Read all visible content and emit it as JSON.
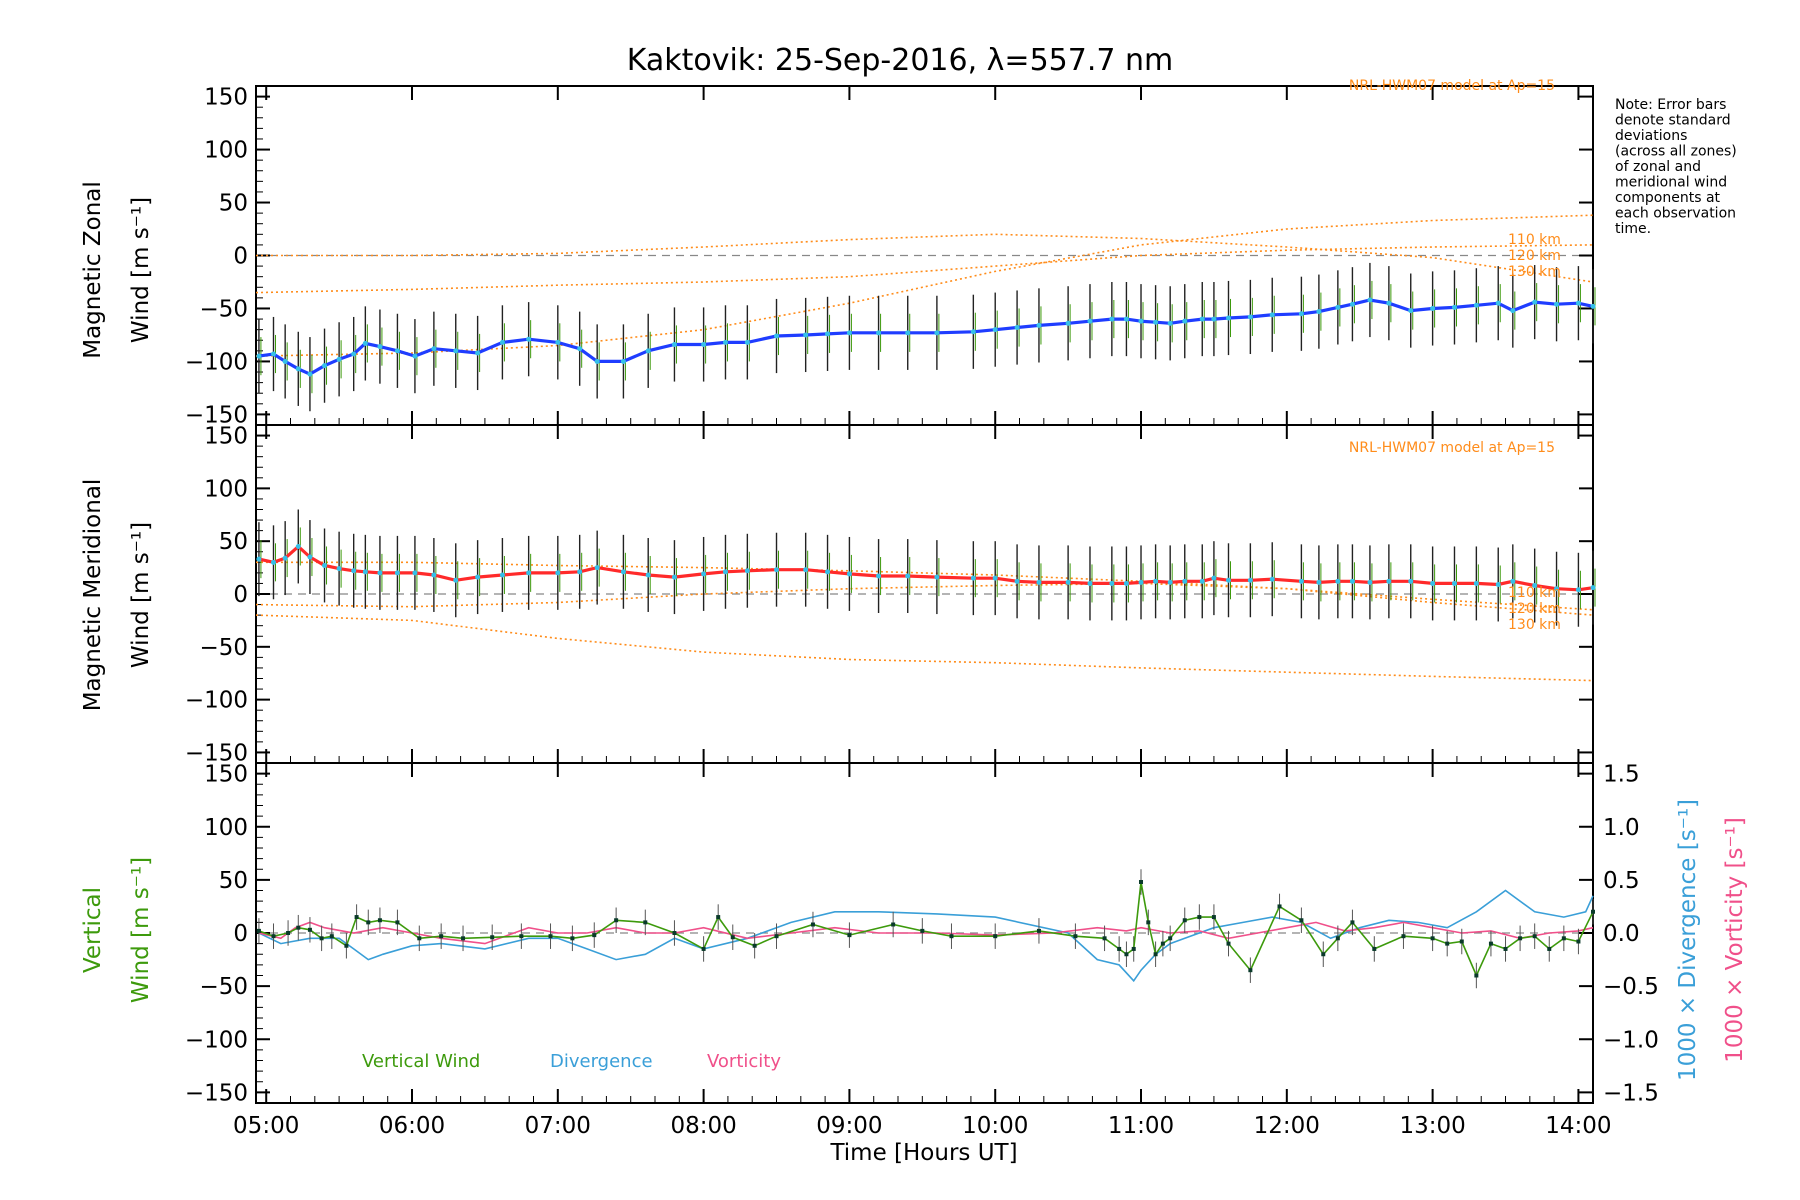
{
  "title": "Kaktovik: 25-Sep-2016, λ=557.7 nm",
  "note_lines": [
    "Note: Error bars",
    "denote standard",
    "deviations",
    "(across all zones)",
    "of zonal and",
    "meridional wind",
    "components at",
    "each observation",
    "time."
  ],
  "model_label": "NRL-HWM07 model at Ap=15",
  "km_labels": [
    "110 km",
    "120 km",
    "130 km"
  ],
  "xlabel": "Time [Hours UT]",
  "x_ticks": [
    "05:00",
    "06:00",
    "07:00",
    "08:00",
    "09:00",
    "10:00",
    "11:00",
    "12:00",
    "13:00",
    "14:00"
  ],
  "y_ticks": [
    "150",
    "100",
    "50",
    "0",
    "−50",
    "−100",
    "−150"
  ],
  "right_ticks": [
    "1.5",
    "1.0",
    "0.5",
    "0.0",
    "−0.5",
    "−1.0",
    "−1.5"
  ],
  "panels": {
    "zonal": {
      "ylabel_line1": "Magnetic Zonal",
      "ylabel_line2": "Wind [m s⁻¹]"
    },
    "meridional": {
      "ylabel_line1": "Magnetic Meridional",
      "ylabel_line2": "Wind [m s⁻¹]"
    },
    "vertical": {
      "ylabel_line1": "Vertical",
      "ylabel_line2": "Wind [m s⁻¹]",
      "right_label_div": "1000 × Divergence [s⁻¹]",
      "right_label_vort": "1000 × Vorticity [s⁻¹]"
    }
  },
  "legend": {
    "vertical": "Vertical Wind",
    "divergence": "Divergence",
    "vorticity": "Vorticity"
  },
  "colors": {
    "zonal": "#1f3dff",
    "meridional": "#ff2a2a",
    "vertical": "#3d9a0c",
    "divergence": "#3a9fd8",
    "vorticity": "#f0508a",
    "model": "#ff8c1a"
  },
  "chart_data": {
    "type": "line",
    "x_unit": "hours UT",
    "xlim": [
      4.93,
      14.1
    ],
    "ylim": [
      -160,
      160
    ],
    "y2lim": [
      -1.6,
      1.6
    ],
    "panels": [
      {
        "name": "zonal",
        "series": [
          {
            "x": [
              4.95,
              5.05,
              5.13,
              5.22,
              5.3,
              5.4,
              5.5,
              5.6,
              5.68,
              5.78,
              5.9,
              6.02,
              6.15,
              6.3,
              6.45,
              6.62,
              6.8,
              7.0,
              7.15,
              7.27,
              7.45,
              7.62,
              7.8,
              8.0,
              8.15,
              8.3,
              8.5,
              8.7,
              8.85,
              9.0,
              9.2,
              9.4,
              9.6,
              9.85,
              10.0,
              10.15,
              10.3,
              10.5,
              10.65,
              10.8,
              10.9,
              11.0,
              11.1,
              11.2,
              11.3,
              11.42,
              11.5,
              11.6,
              11.75,
              11.9,
              12.1,
              12.22,
              12.35,
              12.45,
              12.57,
              12.7,
              12.85,
              13.0,
              13.15,
              13.3,
              13.45,
              13.55,
              13.7,
              13.85,
              14.0,
              14.1
            ],
            "y": [
              -95,
              -93,
              -100,
              -107,
              -112,
              -104,
              -98,
              -93,
              -83,
              -86,
              -90,
              -95,
              -88,
              -90,
              -92,
              -82,
              -79,
              -82,
              -88,
              -100,
              -100,
              -90,
              -84,
              -84,
              -82,
              -82,
              -76,
              -75,
              -74,
              -73,
              -73,
              -73,
              -73,
              -72,
              -70,
              -68,
              -66,
              -64,
              -62,
              -60,
              -60,
              -62,
              -63,
              -64,
              -62,
              -60,
              -60,
              -59,
              -58,
              -56,
              -55,
              -53,
              -49,
              -46,
              -42,
              -45,
              -52,
              -50,
              -49,
              -47,
              -45,
              -52,
              -44,
              -46,
              -45,
              -48
            ]
          },
          {
            "name": "110 km",
            "x": [
              4.93,
              6,
              7,
              8,
              9,
              10,
              11,
              12,
              13,
              14.1
            ],
            "y": [
              0,
              0,
              2,
              8,
              15,
              20,
              16,
              8,
              -2,
              -25
            ]
          },
          {
            "name": "120 km",
            "x": [
              4.93,
              6,
              7,
              8,
              9,
              10,
              11,
              12,
              13,
              14.1
            ],
            "y": [
              -35,
              -32,
              -28,
              -25,
              -20,
              -10,
              0,
              5,
              8,
              10
            ]
          },
          {
            "name": "130 km",
            "x": [
              4.93,
              6,
              7,
              8,
              9,
              10,
              11,
              12,
              13,
              14.1
            ],
            "y": [
              -95,
              -92,
              -85,
              -70,
              -45,
              -15,
              10,
              25,
              33,
              38
            ]
          }
        ]
      },
      {
        "name": "meridional",
        "series": [
          {
            "x": [
              4.95,
              5.05,
              5.13,
              5.22,
              5.3,
              5.4,
              5.5,
              5.6,
              5.68,
              5.78,
              5.9,
              6.02,
              6.15,
              6.3,
              6.45,
              6.62,
              6.8,
              7.0,
              7.15,
              7.27,
              7.45,
              7.62,
              7.8,
              8.0,
              8.15,
              8.3,
              8.5,
              8.7,
              8.85,
              9.0,
              9.2,
              9.4,
              9.6,
              9.85,
              10.0,
              10.15,
              10.3,
              10.5,
              10.65,
              10.8,
              10.9,
              11.0,
              11.1,
              11.2,
              11.3,
              11.42,
              11.5,
              11.6,
              11.75,
              11.9,
              12.1,
              12.22,
              12.35,
              12.45,
              12.57,
              12.7,
              12.85,
              13.0,
              13.15,
              13.3,
              13.45,
              13.55,
              13.7,
              13.85,
              14.0,
              14.1
            ],
            "y": [
              33,
              30,
              34,
              45,
              35,
              27,
              24,
              22,
              21,
              20,
              20,
              20,
              18,
              13,
              16,
              18,
              20,
              20,
              21,
              25,
              21,
              18,
              16,
              19,
              21,
              22,
              23,
              23,
              21,
              19,
              17,
              17,
              16,
              15,
              15,
              12,
              11,
              11,
              10,
              10,
              10,
              11,
              12,
              11,
              12,
              12,
              15,
              13,
              13,
              14,
              12,
              11,
              12,
              12,
              11,
              12,
              12,
              10,
              10,
              10,
              9,
              12,
              8,
              5,
              4,
              6
            ]
          },
          {
            "name": "110 km",
            "x": [
              4.93,
              6,
              7,
              8,
              9,
              10,
              11,
              12,
              13,
              14.1
            ],
            "y": [
              30,
              30,
              27,
              25,
              22,
              18,
              12,
              5,
              -8,
              -20
            ]
          },
          {
            "name": "120 km",
            "x": [
              4.93,
              6,
              7,
              8,
              9,
              10,
              11,
              12,
              13,
              14.1
            ],
            "y": [
              -10,
              -12,
              -8,
              0,
              5,
              8,
              10,
              5,
              -5,
              -15
            ]
          },
          {
            "name": "130 km",
            "x": [
              4.93,
              6,
              7,
              8,
              9,
              10,
              11,
              12,
              13,
              14.1
            ],
            "y": [
              -20,
              -25,
              -42,
              -55,
              -62,
              -65,
              -70,
              -74,
              -78,
              -82
            ]
          }
        ]
      },
      {
        "name": "vertical",
        "series": [
          {
            "name": "Vertical Wind",
            "x": [
              4.95,
              5.05,
              5.15,
              5.22,
              5.3,
              5.38,
              5.45,
              5.55,
              5.62,
              5.7,
              5.78,
              5.9,
              6.05,
              6.2,
              6.35,
              6.55,
              6.75,
              6.95,
              7.1,
              7.25,
              7.4,
              7.6,
              7.8,
              8.0,
              8.1,
              8.2,
              8.35,
              8.5,
              8.75,
              9.0,
              9.3,
              9.5,
              9.7,
              10.0,
              10.3,
              10.55,
              10.75,
              10.85,
              10.9,
              10.95,
              11.0,
              11.05,
              11.1,
              11.15,
              11.2,
              11.3,
              11.4,
              11.5,
              11.6,
              11.75,
              11.95,
              12.1,
              12.25,
              12.35,
              12.45,
              12.6,
              12.8,
              13.0,
              13.1,
              13.2,
              13.3,
              13.4,
              13.5,
              13.6,
              13.7,
              13.8,
              13.9,
              14.0,
              14.1
            ],
            "y": [
              2,
              -3,
              0,
              5,
              3,
              -5,
              -3,
              -12,
              15,
              10,
              12,
              10,
              -5,
              -3,
              -5,
              -4,
              -3,
              -3,
              -5,
              -2,
              12,
              10,
              0,
              -15,
              15,
              -4,
              -12,
              -3,
              8,
              -2,
              8,
              2,
              -3,
              -3,
              2,
              -3,
              -5,
              -15,
              -20,
              -15,
              48,
              10,
              -20,
              -10,
              -5,
              12,
              15,
              15,
              -10,
              -35,
              25,
              12,
              -20,
              -5,
              10,
              -15,
              -3,
              -5,
              -10,
              -8,
              -40,
              -10,
              -15,
              -5,
              -3,
              -15,
              -5,
              -8,
              20
            ]
          },
          {
            "name": "Divergence",
            "x": [
              4.95,
              5.1,
              5.3,
              5.5,
              5.6,
              5.7,
              5.8,
              6.0,
              6.2,
              6.5,
              6.8,
              7.0,
              7.2,
              7.4,
              7.6,
              7.8,
              8.0,
              8.3,
              8.6,
              8.9,
              9.2,
              9.6,
              10.0,
              10.5,
              10.7,
              10.85,
              10.95,
              11.0,
              11.1,
              11.2,
              11.3,
              11.5,
              11.7,
              11.9,
              12.1,
              12.3,
              12.5,
              12.7,
              12.9,
              13.1,
              13.3,
              13.5,
              13.7,
              13.9,
              14.05,
              14.1
            ],
            "y": [
              0.0,
              -0.1,
              -0.05,
              -0.05,
              -0.15,
              -0.25,
              -0.2,
              -0.12,
              -0.1,
              -0.15,
              -0.05,
              -0.05,
              -0.15,
              -0.25,
              -0.2,
              -0.05,
              -0.15,
              -0.05,
              0.1,
              0.2,
              0.2,
              0.18,
              0.15,
              0.0,
              -0.25,
              -0.3,
              -0.45,
              -0.35,
              -0.2,
              -0.1,
              -0.05,
              0.05,
              0.1,
              0.15,
              0.1,
              -0.05,
              0.05,
              0.12,
              0.1,
              0.05,
              0.2,
              0.4,
              0.2,
              0.15,
              0.2,
              0.35
            ]
          },
          {
            "name": "Vorticity",
            "x": [
              4.95,
              5.1,
              5.2,
              5.3,
              5.4,
              5.6,
              5.8,
              6.0,
              6.2,
              6.5,
              6.8,
              7.0,
              7.2,
              7.4,
              7.6,
              7.8,
              8.0,
              8.3,
              8.6,
              8.9,
              9.2,
              9.6,
              10.0,
              10.4,
              10.7,
              10.9,
              11.0,
              11.2,
              11.4,
              11.6,
              11.8,
              12.0,
              12.2,
              12.4,
              12.6,
              12.8,
              13.0,
              13.2,
              13.4,
              13.6,
              13.8,
              14.0,
              14.1
            ],
            "y": [
              0.0,
              -0.05,
              0.05,
              0.1,
              0.05,
              0.0,
              0.05,
              0.0,
              -0.05,
              -0.1,
              0.05,
              0.0,
              0.0,
              0.05,
              0.0,
              0.0,
              0.05,
              -0.05,
              0.0,
              0.05,
              0.0,
              0.0,
              -0.02,
              0.0,
              0.05,
              0.02,
              0.05,
              0.0,
              0.02,
              -0.05,
              0.0,
              0.05,
              0.1,
              0.02,
              0.05,
              0.1,
              0.05,
              0.0,
              0.02,
              -0.05,
              0.0,
              0.02,
              0.05
            ]
          }
        ]
      }
    ]
  }
}
